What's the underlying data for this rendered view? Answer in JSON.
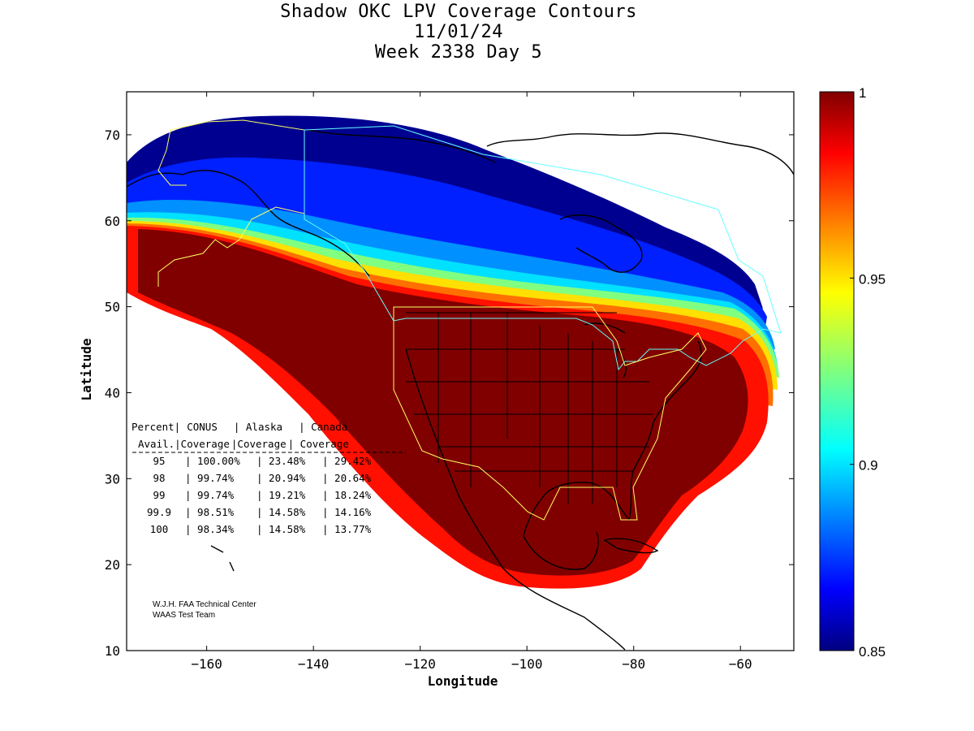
{
  "title": {
    "line1": "Shadow OKC LPV Coverage Contours",
    "line2": "11/01/24",
    "line3": "Week 2338 Day 5"
  },
  "axes": {
    "xlabel": "Longitude",
    "ylabel": "Latitude",
    "xlim": [
      -175,
      -50
    ],
    "ylim": [
      10,
      75
    ],
    "x_ticks": [
      -160,
      -140,
      -120,
      -100,
      -80,
      -60
    ],
    "y_ticks": [
      10,
      20,
      30,
      40,
      50,
      60,
      70
    ]
  },
  "colorbar": {
    "min": 0.85,
    "max": 1,
    "tick_labels": [
      "1",
      "0.95",
      "0.9",
      "0.85"
    ],
    "tick_values": [
      1,
      0.95,
      0.9,
      0.85
    ],
    "colormap": "jet"
  },
  "coverage_table": {
    "header_row1": [
      "Percent|",
      "CONUS",
      "| Alaska",
      "| Canada"
    ],
    "header_row2": [
      "Avail.|Coverage",
      "|Coverage",
      "| Coverage"
    ],
    "rows": [
      {
        "avail": "95",
        "conus": "100.00%",
        "alaska": "23.48%",
        "canada": "29.42%"
      },
      {
        "avail": "98",
        "conus": "99.74%",
        "alaska": "20.94%",
        "canada": "20.64%"
      },
      {
        "avail": "99",
        "conus": "99.74%",
        "alaska": "19.21%",
        "canada": "18.24%"
      },
      {
        "avail": "99.9",
        "conus": "98.51%",
        "alaska": "14.58%",
        "canada": "14.16%"
      },
      {
        "avail": "100",
        "conus": "98.34%",
        "alaska": "14.58%",
        "canada": "13.77%"
      }
    ]
  },
  "credit": {
    "line1": "W.J.H. FAA Technical Center",
    "line2": "WAAS Test Team"
  },
  "colors": {
    "dark_red": "#800000",
    "red": "#ff0000",
    "yellow": "#ffff00",
    "cyan": "#00ffff",
    "blue": "#0000ff",
    "dark_blue": "#000080",
    "region_outline_yellow": "#ffff66",
    "region_outline_cyan": "#66ffff"
  }
}
